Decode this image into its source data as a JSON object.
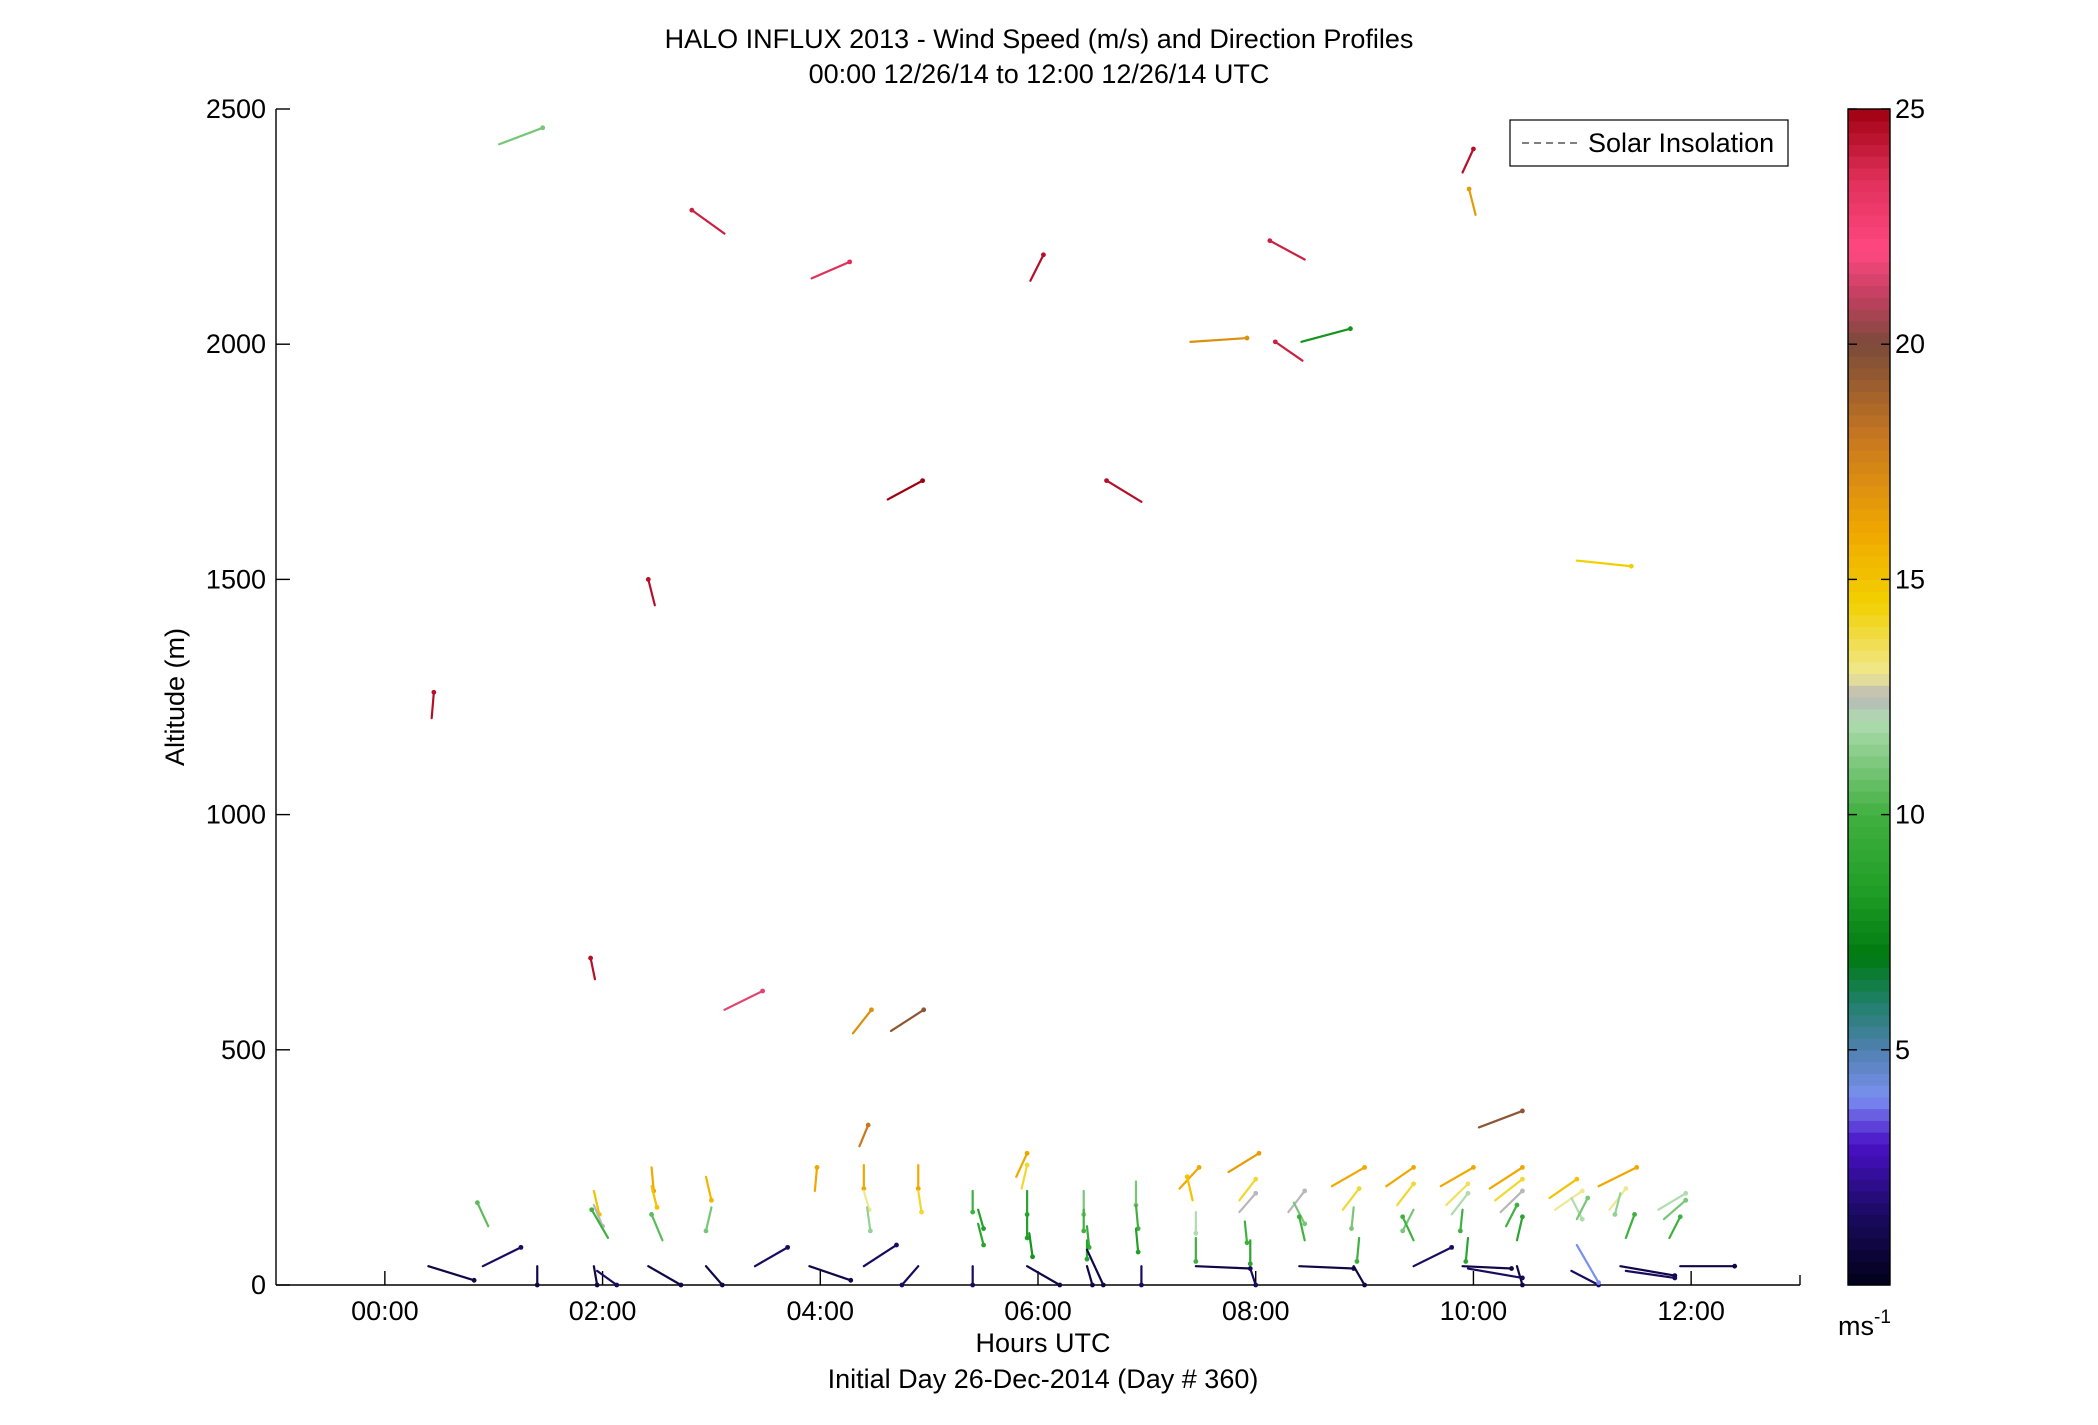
{
  "chart_data": {
    "type": "scatter",
    "title": "HALO INFLUX 2013 - Wind Speed (m/s) and Direction Profiles",
    "subtitle": "00:00 12/26/14 to 12:00 12/26/14  UTC",
    "xlabel": "Hours UTC",
    "xlabel2": "Initial Day 26-Dec-2014 (Day # 360)",
    "ylabel": "Altitude (m)",
    "xlim": [
      -1,
      13
    ],
    "ylim": [
      0,
      2500
    ],
    "x_ticks": [
      {
        "value": 0,
        "label": "00:00"
      },
      {
        "value": 2,
        "label": "02:00"
      },
      {
        "value": 4,
        "label": "04:00"
      },
      {
        "value": 6,
        "label": "06:00"
      },
      {
        "value": 8,
        "label": "08:00"
      },
      {
        "value": 10,
        "label": "10:00"
      },
      {
        "value": 12,
        "label": "12:00"
      }
    ],
    "y_ticks": [
      {
        "value": 0,
        "label": "0"
      },
      {
        "value": 500,
        "label": "500"
      },
      {
        "value": 1000,
        "label": "1000"
      },
      {
        "value": 1500,
        "label": "1500"
      },
      {
        "value": 2000,
        "label": "2000"
      },
      {
        "value": 2500,
        "label": "2500"
      }
    ],
    "legend": {
      "label": "Solar Insolation",
      "position": "top-right",
      "color": "#808080"
    },
    "colorbar": {
      "range": [
        0,
        25
      ],
      "ticks": [
        {
          "value": 5,
          "label": "5"
        },
        {
          "value": 10,
          "label": "10"
        },
        {
          "value": 15,
          "label": "15"
        },
        {
          "value": 20,
          "label": "20"
        },
        {
          "value": 25,
          "label": "25"
        }
      ],
      "unit": "ms",
      "unit_sup": "-1",
      "stops": [
        {
          "v": 0,
          "c": "#000018"
        },
        {
          "v": 1.5,
          "c": "#1a0a60"
        },
        {
          "v": 3,
          "c": "#4a10c8"
        },
        {
          "v": 4,
          "c": "#7a90f0"
        },
        {
          "v": 5,
          "c": "#5080b0"
        },
        {
          "v": 6,
          "c": "#20806a"
        },
        {
          "v": 7,
          "c": "#007a10"
        },
        {
          "v": 8.5,
          "c": "#22a028"
        },
        {
          "v": 10,
          "c": "#40b040"
        },
        {
          "v": 12,
          "c": "#b0dcb0"
        },
        {
          "v": 12.5,
          "c": "#b8b8b8"
        },
        {
          "v": 13,
          "c": "#f0e890"
        },
        {
          "v": 14.5,
          "c": "#f2d000"
        },
        {
          "v": 16,
          "c": "#f0a800"
        },
        {
          "v": 18,
          "c": "#c87820"
        },
        {
          "v": 20,
          "c": "#7a4a3a"
        },
        {
          "v": 21,
          "c": "#c04060"
        },
        {
          "v": 22,
          "c": "#ff4880"
        },
        {
          "v": 23.5,
          "c": "#e0305a"
        },
        {
          "v": 25,
          "c": "#a00010"
        }
      ]
    },
    "barbs": [
      {
        "t": 0.43,
        "alt": 1205,
        "dx": 0.02,
        "dy": 55,
        "spd": 24.5
      },
      {
        "t": 1.05,
        "alt": 2425,
        "dx": 0.4,
        "dy": 35,
        "spd": 11
      },
      {
        "t": 1.93,
        "alt": 650,
        "dx": -0.04,
        "dy": 45,
        "spd": 24.5
      },
      {
        "t": 2.48,
        "alt": 1445,
        "dx": -0.06,
        "dy": 55,
        "spd": 24.5
      },
      {
        "t": 3.12,
        "alt": 2235,
        "dx": -0.3,
        "dy": 50,
        "spd": 24
      },
      {
        "t": 3.12,
        "alt": 585,
        "dx": 0.35,
        "dy": 40,
        "spd": 21.5
      },
      {
        "t": 3.92,
        "alt": 2140,
        "dx": 0.35,
        "dy": 35,
        "spd": 23.5
      },
      {
        "t": 4.3,
        "alt": 535,
        "dx": 0.17,
        "dy": 50,
        "spd": 17
      },
      {
        "t": 4.36,
        "alt": 295,
        "dx": 0.08,
        "dy": 45,
        "spd": 18
      },
      {
        "t": 4.62,
        "alt": 1670,
        "dx": 0.32,
        "dy": 40,
        "spd": 25
      },
      {
        "t": 4.65,
        "alt": 540,
        "dx": 0.3,
        "dy": 45,
        "spd": 19.5
      },
      {
        "t": 5.93,
        "alt": 2135,
        "dx": 0.12,
        "dy": 55,
        "spd": 24.5
      },
      {
        "t": 6.95,
        "alt": 1665,
        "dx": -0.32,
        "dy": 45,
        "spd": 24.5
      },
      {
        "t": 7.4,
        "alt": 2005,
        "dx": 0.52,
        "dy": 8,
        "spd": 17
      },
      {
        "t": 8.45,
        "alt": 2180,
        "dx": -0.32,
        "dy": 40,
        "spd": 24
      },
      {
        "t": 8.43,
        "alt": 1965,
        "dx": -0.25,
        "dy": 40,
        "spd": 24
      },
      {
        "t": 8.42,
        "alt": 2005,
        "dx": 0.45,
        "dy": 28,
        "spd": 8
      },
      {
        "t": 9.9,
        "alt": 2365,
        "dx": 0.1,
        "dy": 50,
        "spd": 24.5
      },
      {
        "t": 10.02,
        "alt": 2275,
        "dx": -0.06,
        "dy": 55,
        "spd": 16.5
      },
      {
        "t": 10.05,
        "alt": 335,
        "dx": 0.4,
        "dy": 35,
        "spd": 19.5
      },
      {
        "t": 10.95,
        "alt": 1540,
        "dx": 0.5,
        "dy": -12,
        "spd": 14.5
      },
      {
        "t": 0.95,
        "alt": 125,
        "dx": -0.1,
        "dy": 50,
        "spd": 10.5
      },
      {
        "t": 1.92,
        "alt": 200,
        "dx": 0.05,
        "dy": -50,
        "spd": 15
      },
      {
        "t": 1.92,
        "alt": 170,
        "dx": 0.08,
        "dy": -45,
        "spd": 12.5
      },
      {
        "t": 2.05,
        "alt": 100,
        "dx": -0.15,
        "dy": 60,
        "spd": 10
      },
      {
        "t": 2.45,
        "alt": 250,
        "dx": 0.02,
        "dy": -50,
        "spd": 16
      },
      {
        "t": 2.45,
        "alt": 210,
        "dx": 0.05,
        "dy": -45,
        "spd": 15
      },
      {
        "t": 2.55,
        "alt": 95,
        "dx": -0.1,
        "dy": 55,
        "spd": 10.5
      },
      {
        "t": 2.95,
        "alt": 230,
        "dx": 0.05,
        "dy": -50,
        "spd": 15.5
      },
      {
        "t": 3.0,
        "alt": 165,
        "dx": -0.05,
        "dy": -50,
        "spd": 11
      },
      {
        "t": 3.95,
        "alt": 200,
        "dx": 0.02,
        "dy": 50,
        "spd": 16
      },
      {
        "t": 4.4,
        "alt": 255,
        "dx": 0.0,
        "dy": -50,
        "spd": 16
      },
      {
        "t": 4.4,
        "alt": 200,
        "dx": 0.05,
        "dy": -40,
        "spd": 13
      },
      {
        "t": 4.43,
        "alt": 165,
        "dx": 0.03,
        "dy": -50,
        "spd": 11.5
      },
      {
        "t": 4.9,
        "alt": 255,
        "dx": 0.0,
        "dy": -50,
        "spd": 16
      },
      {
        "t": 4.9,
        "alt": 200,
        "dx": 0.03,
        "dy": -45,
        "spd": 14
      },
      {
        "t": 5.4,
        "alt": 200,
        "dx": 0.0,
        "dy": -45,
        "spd": 10
      },
      {
        "t": 5.45,
        "alt": 160,
        "dx": 0.05,
        "dy": -40,
        "spd": 8.5
      },
      {
        "t": 5.45,
        "alt": 130,
        "dx": 0.05,
        "dy": -45,
        "spd": 9
      },
      {
        "t": 5.8,
        "alt": 230,
        "dx": 0.1,
        "dy": 50,
        "spd": 16
      },
      {
        "t": 5.85,
        "alt": 205,
        "dx": 0.05,
        "dy": 50,
        "spd": 14
      },
      {
        "t": 5.9,
        "alt": 200,
        "dx": 0.0,
        "dy": -50,
        "spd": 9
      },
      {
        "t": 5.9,
        "alt": 150,
        "dx": 0.0,
        "dy": -50,
        "spd": 8.5
      },
      {
        "t": 5.92,
        "alt": 110,
        "dx": 0.03,
        "dy": -50,
        "spd": 8
      },
      {
        "t": 6.42,
        "alt": 200,
        "dx": 0.0,
        "dy": -50,
        "spd": 11
      },
      {
        "t": 6.42,
        "alt": 160,
        "dx": 0.0,
        "dy": -45,
        "spd": 10
      },
      {
        "t": 6.45,
        "alt": 125,
        "dx": 0.02,
        "dy": -45,
        "spd": 9.5
      },
      {
        "t": 6.45,
        "alt": 95,
        "dx": 0.0,
        "dy": -40,
        "spd": 9
      },
      {
        "t": 6.9,
        "alt": 220,
        "dx": 0.0,
        "dy": -50,
        "spd": 11
      },
      {
        "t": 6.9,
        "alt": 170,
        "dx": 0.02,
        "dy": -50,
        "spd": 10
      },
      {
        "t": 6.9,
        "alt": 120,
        "dx": 0.02,
        "dy": -50,
        "spd": 8.5
      },
      {
        "t": 7.3,
        "alt": 205,
        "dx": 0.18,
        "dy": 45,
        "spd": 16
      },
      {
        "t": 7.42,
        "alt": 180,
        "dx": -0.05,
        "dy": 50,
        "spd": 15
      },
      {
        "t": 7.45,
        "alt": 155,
        "dx": 0.0,
        "dy": -45,
        "spd": 12
      },
      {
        "t": 7.45,
        "alt": 100,
        "dx": 0.0,
        "dy": -50,
        "spd": 10
      },
      {
        "t": 7.75,
        "alt": 240,
        "dx": 0.28,
        "dy": 40,
        "spd": 16.5
      },
      {
        "t": 7.85,
        "alt": 180,
        "dx": 0.15,
        "dy": 45,
        "spd": 14
      },
      {
        "t": 7.85,
        "alt": 155,
        "dx": 0.15,
        "dy": 40,
        "spd": 12.5
      },
      {
        "t": 7.9,
        "alt": 135,
        "dx": 0.02,
        "dy": -45,
        "spd": 10
      },
      {
        "t": 7.95,
        "alt": 95,
        "dx": 0.0,
        "dy": -50,
        "spd": 9
      },
      {
        "t": 8.3,
        "alt": 155,
        "dx": 0.15,
        "dy": 45,
        "spd": 12.5
      },
      {
        "t": 8.35,
        "alt": 175,
        "dx": 0.1,
        "dy": -45,
        "spd": 11
      },
      {
        "t": 8.45,
        "alt": 95,
        "dx": -0.05,
        "dy": 50,
        "spd": 10
      },
      {
        "t": 8.7,
        "alt": 210,
        "dx": 0.3,
        "dy": 40,
        "spd": 16
      },
      {
        "t": 8.8,
        "alt": 160,
        "dx": 0.15,
        "dy": 45,
        "spd": 14
      },
      {
        "t": 8.9,
        "alt": 165,
        "dx": -0.02,
        "dy": -45,
        "spd": 11
      },
      {
        "t": 8.95,
        "alt": 100,
        "dx": -0.02,
        "dy": -50,
        "spd": 10
      },
      {
        "t": 9.2,
        "alt": 210,
        "dx": 0.25,
        "dy": 40,
        "spd": 16
      },
      {
        "t": 9.3,
        "alt": 170,
        "dx": 0.15,
        "dy": 45,
        "spd": 14
      },
      {
        "t": 9.45,
        "alt": 160,
        "dx": -0.1,
        "dy": -45,
        "spd": 11
      },
      {
        "t": 9.45,
        "alt": 95,
        "dx": -0.1,
        "dy": 50,
        "spd": 10
      },
      {
        "t": 9.7,
        "alt": 210,
        "dx": 0.3,
        "dy": 40,
        "spd": 16
      },
      {
        "t": 9.75,
        "alt": 170,
        "dx": 0.2,
        "dy": 45,
        "spd": 13.5
      },
      {
        "t": 9.8,
        "alt": 150,
        "dx": 0.15,
        "dy": 45,
        "spd": 12
      },
      {
        "t": 9.9,
        "alt": 160,
        "dx": -0.02,
        "dy": -45,
        "spd": 10
      },
      {
        "t": 9.95,
        "alt": 100,
        "dx": -0.02,
        "dy": -50,
        "spd": 9
      },
      {
        "t": 10.15,
        "alt": 205,
        "dx": 0.3,
        "dy": 45,
        "spd": 16
      },
      {
        "t": 10.2,
        "alt": 180,
        "dx": 0.25,
        "dy": 45,
        "spd": 14
      },
      {
        "t": 10.25,
        "alt": 155,
        "dx": 0.2,
        "dy": 45,
        "spd": 12.5
      },
      {
        "t": 10.3,
        "alt": 125,
        "dx": 0.1,
        "dy": 45,
        "spd": 10
      },
      {
        "t": 10.4,
        "alt": 95,
        "dx": 0.05,
        "dy": 50,
        "spd": 9
      },
      {
        "t": 10.7,
        "alt": 185,
        "dx": 0.25,
        "dy": 40,
        "spd": 15
      },
      {
        "t": 10.75,
        "alt": 160,
        "dx": 0.25,
        "dy": 40,
        "spd": 13
      },
      {
        "t": 10.9,
        "alt": 185,
        "dx": 0.1,
        "dy": -45,
        "spd": 12
      },
      {
        "t": 10.95,
        "alt": 140,
        "dx": 0.1,
        "dy": 45,
        "spd": 11
      },
      {
        "t": 11.15,
        "alt": 210,
        "dx": 0.35,
        "dy": 40,
        "spd": 16
      },
      {
        "t": 11.25,
        "alt": 160,
        "dx": 0.15,
        "dy": 45,
        "spd": 13
      },
      {
        "t": 11.35,
        "alt": 195,
        "dx": -0.05,
        "dy": -45,
        "spd": 11.5
      },
      {
        "t": 11.4,
        "alt": 100,
        "dx": 0.08,
        "dy": 50,
        "spd": 10
      },
      {
        "t": 11.7,
        "alt": 160,
        "dx": 0.25,
        "dy": 35,
        "spd": 12
      },
      {
        "t": 11.75,
        "alt": 140,
        "dx": 0.2,
        "dy": 40,
        "spd": 11
      },
      {
        "t": 11.8,
        "alt": 100,
        "dx": 0.1,
        "dy": 45,
        "spd": 10
      },
      {
        "t": 0.4,
        "alt": 40,
        "dx": 0.42,
        "dy": -30,
        "spd": 1
      },
      {
        "t": 0.9,
        "alt": 40,
        "dx": 0.35,
        "dy": 40,
        "spd": 1.5
      },
      {
        "t": 1.4,
        "alt": 40,
        "dx": 0.0,
        "dy": -40,
        "spd": 1
      },
      {
        "t": 1.92,
        "alt": 40,
        "dx": 0.03,
        "dy": -40,
        "spd": 1
      },
      {
        "t": 1.95,
        "alt": 30,
        "dx": 0.18,
        "dy": -30,
        "spd": 1.5
      },
      {
        "t": 2.42,
        "alt": 40,
        "dx": 0.3,
        "dy": -40,
        "spd": 1
      },
      {
        "t": 2.95,
        "alt": 40,
        "dx": 0.15,
        "dy": -40,
        "spd": 1
      },
      {
        "t": 3.4,
        "alt": 40,
        "dx": 0.3,
        "dy": 40,
        "spd": 1.5
      },
      {
        "t": 3.9,
        "alt": 40,
        "dx": 0.38,
        "dy": -30,
        "spd": 1
      },
      {
        "t": 4.4,
        "alt": 40,
        "dx": 0.3,
        "dy": 45,
        "spd": 1.5
      },
      {
        "t": 4.9,
        "alt": 40,
        "dx": -0.15,
        "dy": -40,
        "spd": 1.5
      },
      {
        "t": 5.4,
        "alt": 40,
        "dx": 0.0,
        "dy": -40,
        "spd": 1.5
      },
      {
        "t": 5.9,
        "alt": 40,
        "dx": 0.3,
        "dy": -40,
        "spd": 1
      },
      {
        "t": 6.45,
        "alt": 75,
        "dx": 0.15,
        "dy": -75,
        "spd": 1
      },
      {
        "t": 6.45,
        "alt": 40,
        "dx": 0.05,
        "dy": -40,
        "spd": 1
      },
      {
        "t": 6.95,
        "alt": 40,
        "dx": 0.0,
        "dy": -40,
        "spd": 1.5
      },
      {
        "t": 7.45,
        "alt": 40,
        "dx": 0.5,
        "dy": -5,
        "spd": 1
      },
      {
        "t": 7.95,
        "alt": 35,
        "dx": 0.05,
        "dy": -35,
        "spd": 1.5
      },
      {
        "t": 8.4,
        "alt": 40,
        "dx": 0.5,
        "dy": -5,
        "spd": 1
      },
      {
        "t": 8.9,
        "alt": 40,
        "dx": 0.1,
        "dy": -40,
        "spd": 1
      },
      {
        "t": 9.45,
        "alt": 40,
        "dx": 0.35,
        "dy": 40,
        "spd": 1.5
      },
      {
        "t": 9.9,
        "alt": 40,
        "dx": 0.45,
        "dy": -5,
        "spd": 1
      },
      {
        "t": 9.95,
        "alt": 35,
        "dx": 0.5,
        "dy": -20,
        "spd": 1.5
      },
      {
        "t": 10.4,
        "alt": 40,
        "dx": 0.05,
        "dy": -40,
        "spd": 1
      },
      {
        "t": 10.9,
        "alt": 30,
        "dx": 0.25,
        "dy": -30,
        "spd": 1.5
      },
      {
        "t": 10.95,
        "alt": 85,
        "dx": 0.2,
        "dy": -80,
        "spd": 4
      },
      {
        "t": 11.35,
        "alt": 40,
        "dx": 0.5,
        "dy": -20,
        "spd": 1
      },
      {
        "t": 11.4,
        "alt": 30,
        "dx": 0.45,
        "dy": -15,
        "spd": 1.5
      },
      {
        "t": 11.9,
        "alt": 40,
        "dx": 0.5,
        "dy": 0,
        "spd": 1
      }
    ]
  }
}
